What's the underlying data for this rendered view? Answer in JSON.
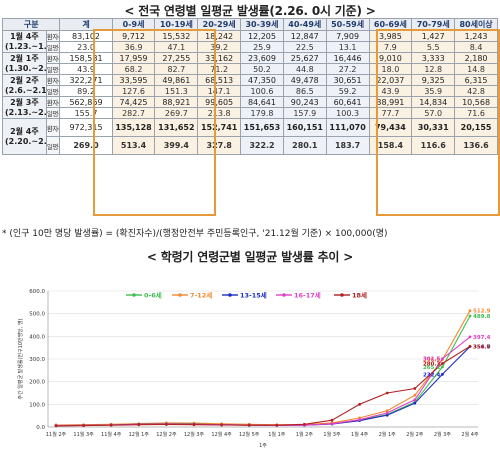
{
  "title_table": "< 전국 연령별 일평균 발생률(2.26. 0시 기준) >",
  "title_chart": "< 학령기 연령군별 일평균 발생률 추이 >",
  "table": {
    "header": [
      "구분",
      "계",
      "0-9세",
      "10-19세",
      "20-29세",
      "30-39세",
      "40-49세",
      "50-59세",
      "60-69세",
      "70-79세",
      "80세이상"
    ],
    "kind_count": "환자수",
    "kind_rate": "일평균발생률",
    "rows": [
      {
        "period": "1월 4주 (1.23.~1.29.)",
        "count": [
          "83,102",
          "9,712",
          "15,532",
          "18,242",
          "12,205",
          "12,847",
          "7,909",
          "3,985",
          "1,427",
          "1,243"
        ],
        "rate": [
          "23.0",
          "36.9",
          "47.1",
          "39.2",
          "25.9",
          "22.5",
          "13.1",
          "7.9",
          "5.5",
          "8.4"
        ]
      },
      {
        "period": "2월 1주 (1.30.~2.5.)",
        "count": [
          "158,581",
          "17,959",
          "27,255",
          "33,162",
          "23,609",
          "25,627",
          "16,446",
          "9,010",
          "3,333",
          "2,180"
        ],
        "rate": [
          "43.9",
          "68.2",
          "82.7",
          "71.2",
          "50.2",
          "44.8",
          "27.2",
          "18.0",
          "12.8",
          "14.8"
        ]
      },
      {
        "period": "2월 2주 (2.6.~2.12.)",
        "count": [
          "322,271",
          "33,595",
          "49,861",
          "68,513",
          "47,350",
          "49,478",
          "30,651",
          "22,037",
          "9,325",
          "6,315"
        ],
        "rate": [
          "89.2",
          "127.6",
          "151.3",
          "147.1",
          "100.6",
          "86.5",
          "59.2",
          "43.9",
          "35.9",
          "42.8"
        ]
      },
      {
        "period": "2월 3주 (2.13.~2.19.)",
        "count": [
          "562,869",
          "74,425",
          "88,921",
          "99,605",
          "84,641",
          "90,243",
          "60,641",
          "38,991",
          "14,834",
          "10,568"
        ],
        "rate": [
          "155.7",
          "282.7",
          "269.7",
          "213.8",
          "179.8",
          "157.9",
          "100.3",
          "77.7",
          "57.0",
          "71.6"
        ]
      },
      {
        "period": "2월 4주 (2.20.~2.26.)",
        "count": [
          "972,315",
          "135,128",
          "131,652",
          "152,741",
          "151,653",
          "160,151",
          "111,070",
          "79,434",
          "30,331",
          "20,155"
        ],
        "rate": [
          "269.0",
          "513.4",
          "399.4",
          "327.8",
          "322.2",
          "280.1",
          "183.7",
          "158.4",
          "116.6",
          "136.6"
        ]
      }
    ]
  },
  "note": "* (인구 10만 명당 발생률) = (확진자수)/(행정안전부 주민등록인구, '21.12월 기준) × 100,000(명)",
  "chart_data": {
    "type": "line",
    "categories": [
      "11월 2주",
      "11월 3주",
      "11월 4주",
      "12월 1주",
      "12월 2주",
      "12월 3주",
      "12월 4주",
      "12월 5주",
      "1월 1주",
      "1월 2주",
      "1월 3주",
      "1월 4주",
      "2월 1주",
      "2월 2주",
      "2월 3주",
      "2월 4주"
    ],
    "ylim": [
      0,
      600
    ],
    "yticks": [
      "0.0",
      "100.0",
      "200.0",
      "300.0",
      "400.0",
      "500.0",
      "600.0"
    ],
    "ylabel": "주간 일평균 발생률(인구10만명당, 명)",
    "xlabel": "1주",
    "legend_position": "top",
    "series": [
      {
        "name": "0-6세",
        "color": "#3fbf4f",
        "values": [
          8,
          9,
          11,
          13,
          15,
          14,
          12,
          10,
          8,
          9,
          14,
          30,
          55,
          110,
          265.2,
          489.8
        ]
      },
      {
        "name": "7-12세",
        "color": "#f08a30",
        "values": [
          9,
          10,
          12,
          15,
          18,
          17,
          14,
          12,
          10,
          11,
          18,
          40,
          72,
          140,
          296.9,
          512.9
        ]
      },
      {
        "name": "13-15세",
        "color": "#1e2fbf",
        "values": [
          6,
          7,
          9,
          12,
          13,
          12,
          10,
          8,
          7,
          8,
          13,
          28,
          52,
          105,
          232.4,
          354.7
        ]
      },
      {
        "name": "16-17세",
        "color": "#e040c8",
        "values": [
          6,
          7,
          9,
          11,
          12,
          11,
          10,
          8,
          7,
          8,
          14,
          32,
          62,
          120,
          301.5,
          397.4
        ]
      },
      {
        "name": "18세",
        "color": "#b22222",
        "values": [
          5,
          6,
          8,
          10,
          11,
          10,
          9,
          8,
          8,
          12,
          30,
          100,
          150,
          170,
          280.3,
          356.0
        ]
      }
    ],
    "data_labels": [
      {
        "series": 0,
        "index": 15,
        "text": "489.8"
      },
      {
        "series": 0,
        "index": 14,
        "text": "265.2"
      },
      {
        "series": 1,
        "index": 15,
        "text": "512.9"
      },
      {
        "series": 1,
        "index": 14,
        "text": "296.9"
      },
      {
        "series": 2,
        "index": 15,
        "text": "354.7"
      },
      {
        "series": 2,
        "index": 14,
        "text": "232.4"
      },
      {
        "series": 3,
        "index": 15,
        "text": "397.4"
      },
      {
        "series": 3,
        "index": 14,
        "text": "301.5"
      },
      {
        "series": 4,
        "index": 15,
        "text": "356.0"
      },
      {
        "series": 4,
        "index": 14,
        "text": "280.3"
      }
    ]
  }
}
